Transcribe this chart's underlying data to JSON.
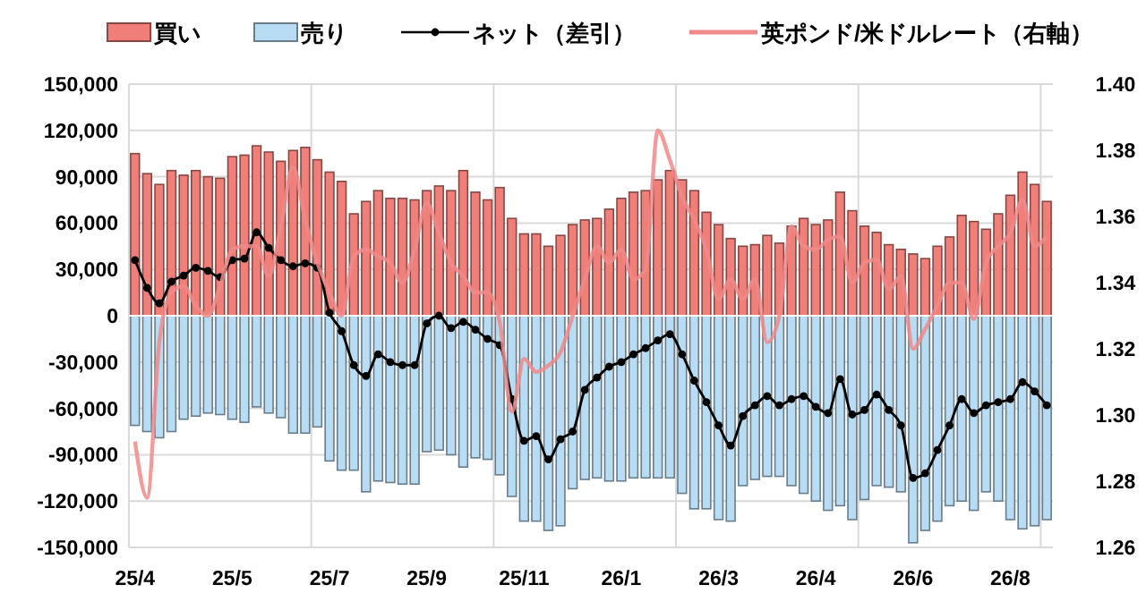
{
  "chart_data": {
    "type": "bar",
    "stacked": true,
    "legend": "top",
    "grid": true,
    "categories": [
      "25/4",
      null,
      null,
      null,
      null,
      null,
      null,
      null,
      "25/5",
      null,
      null,
      null,
      null,
      null,
      null,
      null,
      "25/7",
      null,
      null,
      null,
      null,
      null,
      null,
      null,
      "25/9",
      null,
      null,
      null,
      null,
      null,
      null,
      null,
      "25/11",
      null,
      null,
      null,
      null,
      null,
      null,
      null,
      "26/1",
      null,
      null,
      null,
      null,
      null,
      null,
      null,
      "26/3",
      null,
      null,
      null,
      null,
      null,
      null,
      null,
      "26/4",
      null,
      null,
      null,
      null,
      null,
      null,
      null,
      "26/6",
      null,
      null,
      null,
      null,
      null,
      null,
      null,
      "26/8",
      null,
      null,
      null
    ],
    "ylim": [
      -150000,
      150000
    ],
    "yticks": [
      {
        "value": -150000,
        "label": "-150,000"
      },
      {
        "value": -120000,
        "label": "-120,000"
      },
      {
        "value": -90000,
        "label": "-90,000"
      },
      {
        "value": -60000,
        "label": "-60,000"
      },
      {
        "value": -30000,
        "label": "-30,000"
      },
      {
        "value": 0,
        "label": "0"
      },
      {
        "value": 30000,
        "label": "30,000"
      },
      {
        "value": 60000,
        "label": "60,000"
      },
      {
        "value": 90000,
        "label": "90,000"
      },
      {
        "value": 120000,
        "label": "120,000"
      },
      {
        "value": 150000,
        "label": "150,000"
      }
    ],
    "y2lim": [
      1.26,
      1.4
    ],
    "y2ticks": [
      1.26,
      1.28,
      {
        "value": 1.3,
        "label": "1.30"
      },
      1.32,
      1.34,
      1.36,
      1.38,
      {
        "value": 1.4,
        "label": "1.40"
      }
    ],
    "series": [
      {
        "name": "買い",
        "color": "#ef7f78",
        "values": [
          105000,
          92000,
          85000,
          94000,
          91000,
          94000,
          90000,
          89000,
          103000,
          104000,
          110000,
          106000,
          100000,
          107000,
          109000,
          101000,
          93000,
          87000,
          66000,
          74000,
          81000,
          76000,
          76000,
          75000,
          81000,
          84000,
          81000,
          94000,
          80000,
          75000,
          83000,
          63000,
          53000,
          53000,
          45000,
          52000,
          59000,
          62000,
          63000,
          69000,
          76000,
          80000,
          81000,
          88000,
          94000,
          88000,
          81000,
          67000,
          59000,
          50000,
          45000,
          46000,
          52000,
          47000,
          58000,
          63000,
          59000,
          62000,
          80000,
          68000,
          58000,
          54000,
          46000,
          43000,
          40000,
          37000,
          45000,
          51000,
          65000,
          61000,
          56000,
          66000,
          78000,
          93000,
          85000,
          74000
        ]
      },
      {
        "name": "売り",
        "color": "#b8dcf4",
        "values": [
          -71000,
          -75000,
          -79000,
          -75000,
          -67000,
          -65000,
          -63000,
          -64000,
          -67000,
          -69000,
          -59000,
          -63000,
          -66000,
          -76000,
          -76000,
          -72000,
          -94000,
          -100000,
          -100000,
          -114000,
          -107000,
          -108000,
          -109000,
          -109000,
          -88000,
          -87000,
          -90000,
          -98000,
          -92000,
          -93000,
          -103000,
          -117000,
          -133000,
          -133000,
          -139000,
          -136000,
          -112000,
          -106000,
          -105000,
          -107000,
          -107000,
          -105000,
          -105000,
          -105000,
          -105000,
          -115000,
          -125000,
          -125000,
          -132000,
          -133000,
          -110000,
          -106000,
          -104000,
          -104000,
          -110000,
          -115000,
          -120000,
          -126000,
          -123000,
          -132000,
          -119000,
          -110000,
          -111000,
          -114000,
          -147000,
          -139000,
          -133000,
          -123000,
          -120000,
          -126000,
          -114000,
          -120000,
          -132000,
          -138000,
          -136000,
          -132000
        ]
      },
      {
        "name": "ネット（差引）",
        "type": "line",
        "color": "#000000",
        "marker": "circle",
        "values": [
          36000,
          18000,
          8000,
          22000,
          26000,
          31000,
          29000,
          25000,
          36000,
          37000,
          54000,
          44000,
          36000,
          32000,
          34000,
          31000,
          2000,
          -10000,
          -32000,
          -39000,
          -25000,
          -30000,
          -32000,
          -32000,
          -5000,
          0,
          -8000,
          -4000,
          -9000,
          -15000,
          -19000,
          -54000,
          -81000,
          -78000,
          -93000,
          -80000,
          -75000,
          -48000,
          -40000,
          -33000,
          -30000,
          -25000,
          -21000,
          -16000,
          -12000,
          -25000,
          -42000,
          -56000,
          -71000,
          -84000,
          -65000,
          -58000,
          -52000,
          -58000,
          -54000,
          -52000,
          -59000,
          -63000,
          -41000,
          -64000,
          -61000,
          -51000,
          -61000,
          -71000,
          -105000,
          -102000,
          -87000,
          -71000,
          -54000,
          -63000,
          -58000,
          -56000,
          -54000,
          -43000,
          -49000,
          -58000
        ]
      },
      {
        "name": "英ポンド/米ドルレート（右軸）",
        "type": "line",
        "axis": "y2",
        "color": "#f08a8a",
        "marker": "none",
        "values": [
          1.292,
          1.275,
          1.322,
          1.337,
          1.339,
          1.333,
          1.33,
          1.339,
          1.35,
          1.351,
          1.351,
          1.342,
          1.357,
          1.375,
          1.359,
          1.346,
          1.337,
          1.33,
          1.348,
          1.35,
          1.348,
          1.346,
          1.34,
          1.35,
          1.364,
          1.355,
          1.346,
          1.342,
          1.337,
          1.337,
          1.328,
          1.301,
          1.317,
          1.313,
          1.315,
          1.319,
          1.33,
          1.341,
          1.351,
          1.346,
          1.35,
          1.341,
          1.344,
          1.386,
          1.377,
          1.366,
          1.359,
          1.35,
          1.335,
          1.341,
          1.335,
          1.341,
          1.322,
          1.33,
          1.357,
          1.351,
          1.35,
          1.353,
          1.354,
          1.34,
          1.346,
          1.347,
          1.338,
          1.342,
          1.32,
          1.326,
          1.333,
          1.34,
          1.34,
          1.329,
          1.346,
          1.351,
          1.355,
          1.365,
          1.351,
          1.354
        ]
      }
    ]
  }
}
